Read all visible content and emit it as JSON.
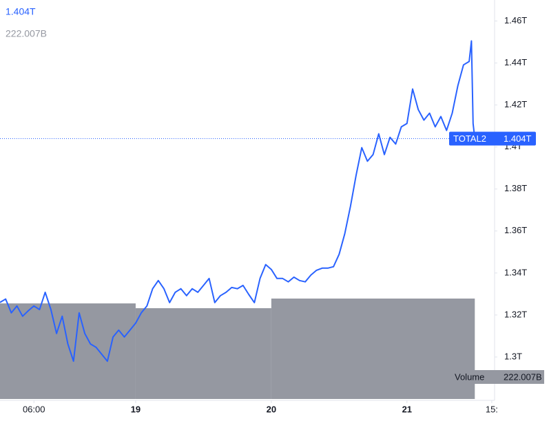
{
  "chart_data": {
    "type": "line",
    "xlim": [
      0,
      87.5
    ],
    "xticks": [
      {
        "value": 6,
        "label": "06:00"
      },
      {
        "value": 24,
        "label": "19"
      },
      {
        "value": 48,
        "label": "20"
      },
      {
        "value": 72,
        "label": "21"
      },
      {
        "value": 87,
        "label": "15:"
      }
    ],
    "ylim": [
      1.28,
      1.47
    ],
    "yticks": [
      {
        "value": 1.3,
        "label": "1.3T"
      },
      {
        "value": 1.32,
        "label": "1.32T"
      },
      {
        "value": 1.34,
        "label": "1.34T"
      },
      {
        "value": 1.36,
        "label": "1.36T"
      },
      {
        "value": 1.38,
        "label": "1.38T"
      },
      {
        "value": 1.4,
        "label": "1.4T"
      },
      {
        "value": 1.42,
        "label": "1.42T"
      },
      {
        "value": 1.44,
        "label": "1.44T"
      },
      {
        "value": 1.46,
        "label": "1.46T"
      }
    ],
    "y2lim": [
      0,
      882
    ],
    "series": [
      {
        "name": "TOTAL2",
        "type": "line",
        "color": "#2962ff",
        "last_label": "1.404T",
        "x": [
          0,
          1,
          2,
          3,
          4,
          5,
          6,
          7,
          8,
          9,
          10,
          11,
          12,
          13,
          14,
          15,
          16,
          17,
          18,
          19,
          20,
          21,
          22,
          23,
          24,
          25,
          26,
          27,
          28,
          29,
          30,
          31,
          32,
          33,
          34,
          35,
          36,
          37,
          38,
          39,
          40,
          41,
          42,
          43,
          44,
          45,
          46,
          47,
          48,
          49,
          50,
          51,
          52,
          53,
          54,
          55,
          56,
          57,
          58,
          59,
          60,
          61,
          62,
          63,
          64,
          65,
          66,
          67,
          68,
          69,
          70,
          71,
          72,
          73,
          74,
          75,
          76,
          77,
          78,
          79,
          80,
          81,
          82,
          83,
          83.4,
          83.7,
          84
        ],
        "values": [
          1.326,
          1.3276,
          1.321,
          1.3243,
          1.3194,
          1.322,
          1.3243,
          1.3226,
          1.3308,
          1.3226,
          1.3112,
          1.3194,
          1.3062,
          1.298,
          1.321,
          1.3112,
          1.3062,
          1.3046,
          1.3013,
          1.298,
          1.3095,
          1.3128,
          1.3095,
          1.3128,
          1.3161,
          1.321,
          1.3243,
          1.3325,
          1.3364,
          1.3325,
          1.3259,
          1.3308,
          1.3325,
          1.3292,
          1.3325,
          1.3308,
          1.3341,
          1.3374,
          1.3259,
          1.3292,
          1.3308,
          1.3331,
          1.3325,
          1.3341,
          1.3298,
          1.3259,
          1.3374,
          1.344,
          1.3417,
          1.3374,
          1.3374,
          1.3358,
          1.338,
          1.3364,
          1.3358,
          1.339,
          1.3413,
          1.3423,
          1.3423,
          1.343,
          1.3489,
          1.3587,
          1.3718,
          1.3866,
          1.3997,
          1.3932,
          1.3964,
          1.4063,
          1.3964,
          1.4046,
          1.4014,
          1.4096,
          1.4112,
          1.4276,
          1.4178,
          1.4128,
          1.4161,
          1.4096,
          1.4145,
          1.4079,
          1.4161,
          1.4292,
          1.4391,
          1.4407,
          1.4505,
          1.4112,
          1.404
        ]
      },
      {
        "name": "Volume",
        "type": "bar",
        "axis": "y2",
        "color": "#9598a1",
        "last_label": "222.007B",
        "x": [
          0,
          24,
          48
        ],
        "values": [
          211.3,
          200.7,
          222.007
        ]
      }
    ]
  }
}
